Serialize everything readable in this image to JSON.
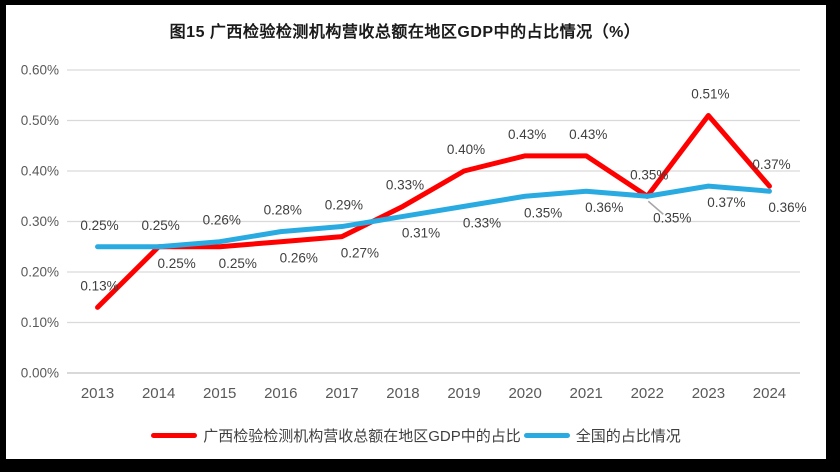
{
  "title": "图15 广西检验检测机构营收总额在地区GDP中的占比情况（%）",
  "chart_data": {
    "type": "line",
    "title": "图15 广西检验检测机构营收总额在地区GDP中的占比情况（%）",
    "categories": [
      "2013",
      "2014",
      "2015",
      "2016",
      "2017",
      "2018",
      "2019",
      "2020",
      "2021",
      "2022",
      "2023",
      "2024"
    ],
    "series": [
      {
        "name": "广西检验检测机构营收总额在地区GDP中的占比",
        "color": "#FF0000",
        "values": [
          0.13,
          0.25,
          0.25,
          0.26,
          0.27,
          0.33,
          0.4,
          0.43,
          0.43,
          0.35,
          0.51,
          0.37
        ],
        "labels": [
          "0.13%",
          "0.25%",
          "0.25%",
          "0.26%",
          "0.27%",
          "0.33%",
          "0.40%",
          "0.43%",
          "0.43%",
          "0.35%",
          "0.51%",
          "0.37%"
        ],
        "label_positions": [
          "above",
          "below",
          "below",
          "below",
          "below",
          "above",
          "above",
          "above",
          "above",
          "above",
          "above",
          "above"
        ]
      },
      {
        "name": "全国的占比情况",
        "color": "#29ABE2",
        "values": [
          0.25,
          0.25,
          0.26,
          0.28,
          0.29,
          0.31,
          0.33,
          0.35,
          0.36,
          0.35,
          0.37,
          0.36
        ],
        "labels": [
          "0.25%",
          "0.25%",
          "0.26%",
          "0.28%",
          "0.29%",
          "0.31%",
          "0.33%",
          "0.35%",
          "0.36%",
          "0.35%",
          "0.37%",
          "0.36%"
        ],
        "label_positions": [
          "above",
          "above",
          "above",
          "above",
          "above",
          "below",
          "below",
          "below",
          "below",
          "leader",
          "below",
          "below"
        ]
      }
    ],
    "ylim": [
      0,
      0.6
    ],
    "yticks": [
      "0.60%",
      "0.50%",
      "0.40%",
      "0.30%",
      "0.20%",
      "0.10%",
      "0.00%"
    ],
    "grid": true,
    "legend_position": "bottom",
    "grid_color": "#D9D9D9",
    "axis_text_color": "#595959",
    "label_text_color": "#3F3F3F",
    "leader_color": "#A6A6A6"
  }
}
